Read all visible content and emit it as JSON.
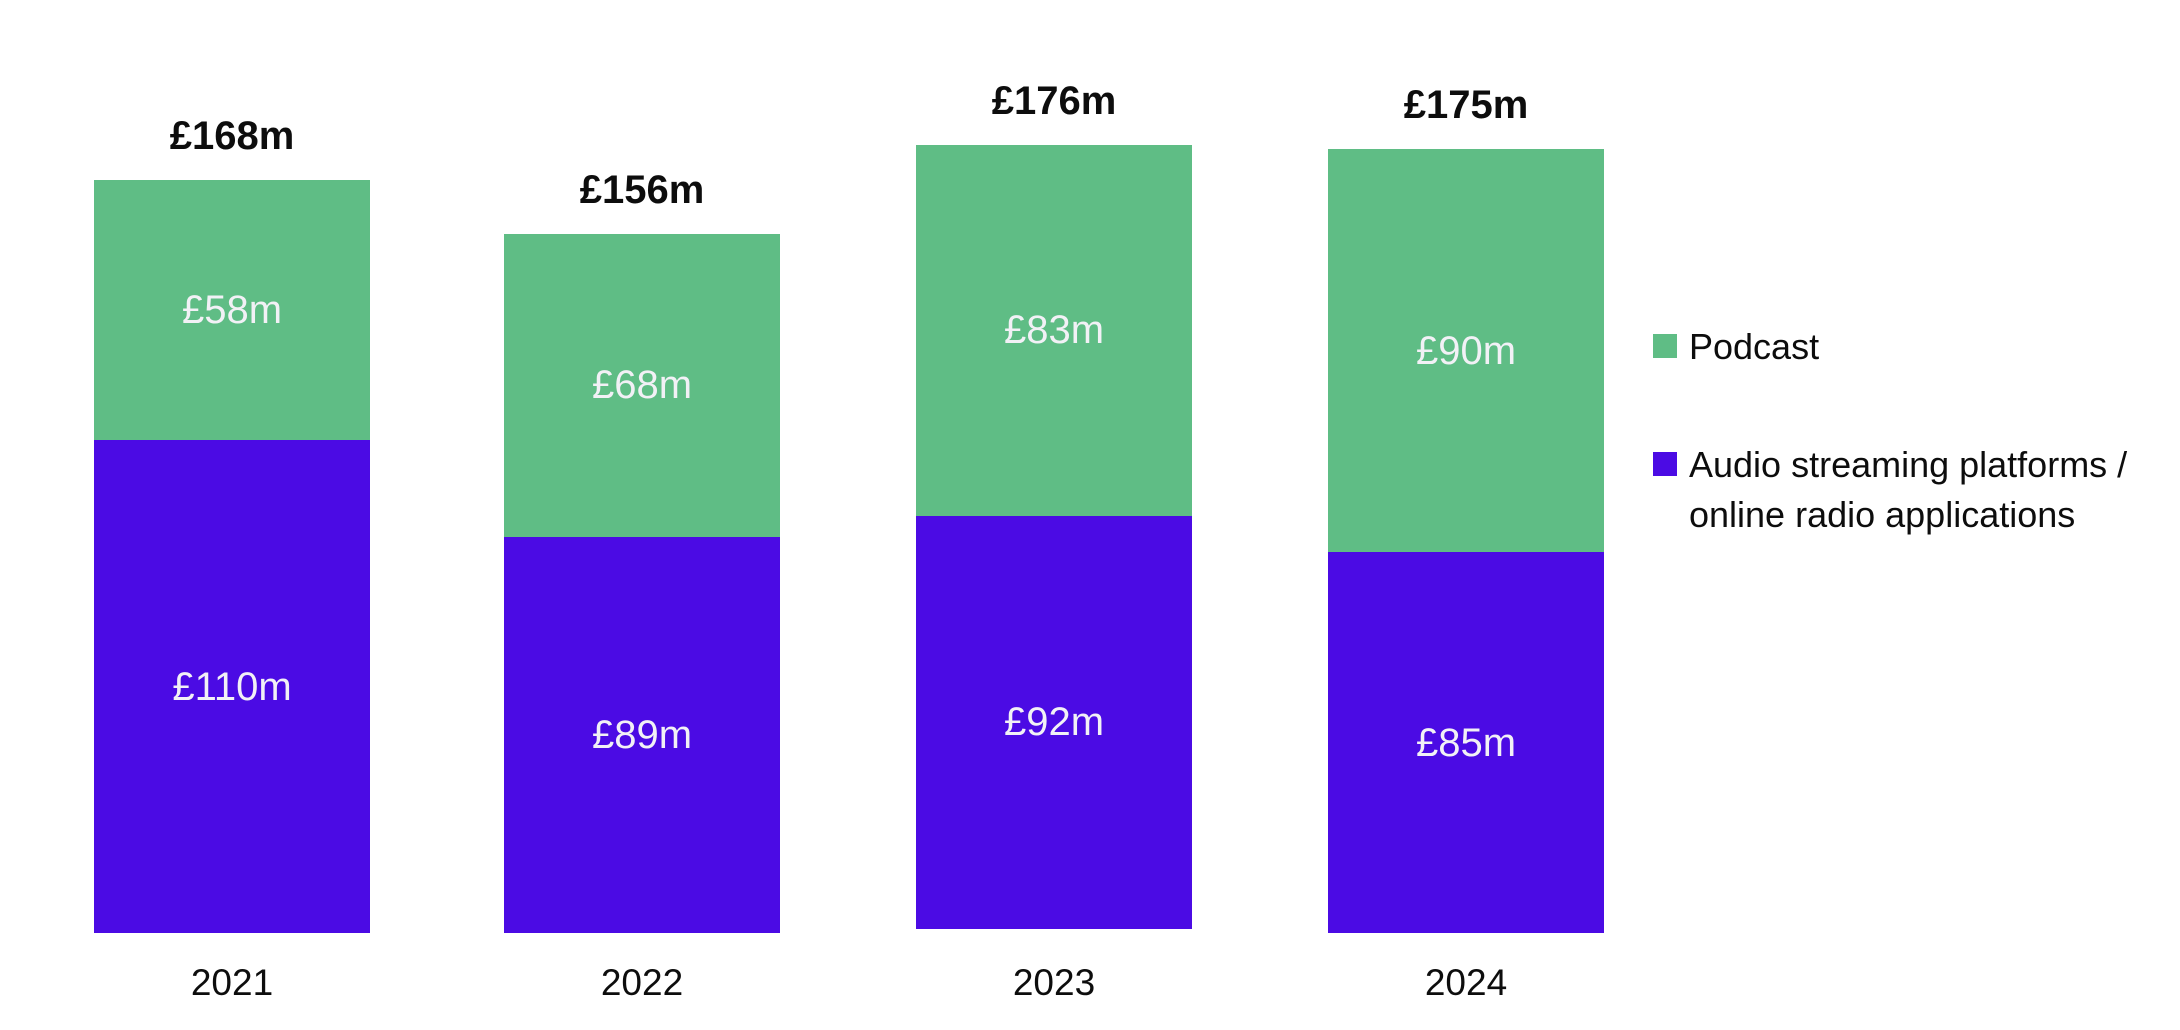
{
  "page": {
    "background_color": "#ffffff",
    "text_color": "#0d0d0d",
    "value_label_color": "#F2F1F6"
  },
  "legend": {
    "position": "right",
    "items": [
      {
        "label": "Podcast",
        "slug": "podcast",
        "color": "#5FBD85",
        "lines": [
          "Podcast"
        ]
      },
      {
        "label": "Audio streaming platforms / online radio applications",
        "slug": "audio-streaming",
        "color": "#4B0BE4",
        "lines": [
          "Audio streaming platforms /",
          "online radio applications"
        ]
      }
    ]
  },
  "chart_data": {
    "type": "bar",
    "subtype": "stacked-vertical",
    "title": "",
    "xlabel": "",
    "ylabel": "",
    "axis_lines": false,
    "grid": false,
    "categories": [
      "2021",
      "2022",
      "2023",
      "2024"
    ],
    "series": [
      {
        "name": "Audio streaming platforms / online radio applications",
        "slug": "audio-streaming",
        "stack_position": "bottom",
        "color": "#4B0BE4",
        "values": [
          110,
          89,
          92,
          85
        ],
        "labels": [
          "£110m",
          "£89m",
          "£92m",
          "£85m"
        ]
      },
      {
        "name": "Podcast",
        "slug": "podcast",
        "stack_position": "top",
        "color": "#5FBD85",
        "values": [
          58,
          68,
          83,
          90
        ],
        "labels": [
          "£58m",
          "£68m",
          "£83m",
          "£90m"
        ]
      }
    ],
    "totals": [
      168,
      156,
      176,
      175
    ],
    "total_labels": [
      "£168m",
      "£156m",
      "£176m",
      "£175m"
    ],
    "unit": "£m (GBP millions)"
  }
}
